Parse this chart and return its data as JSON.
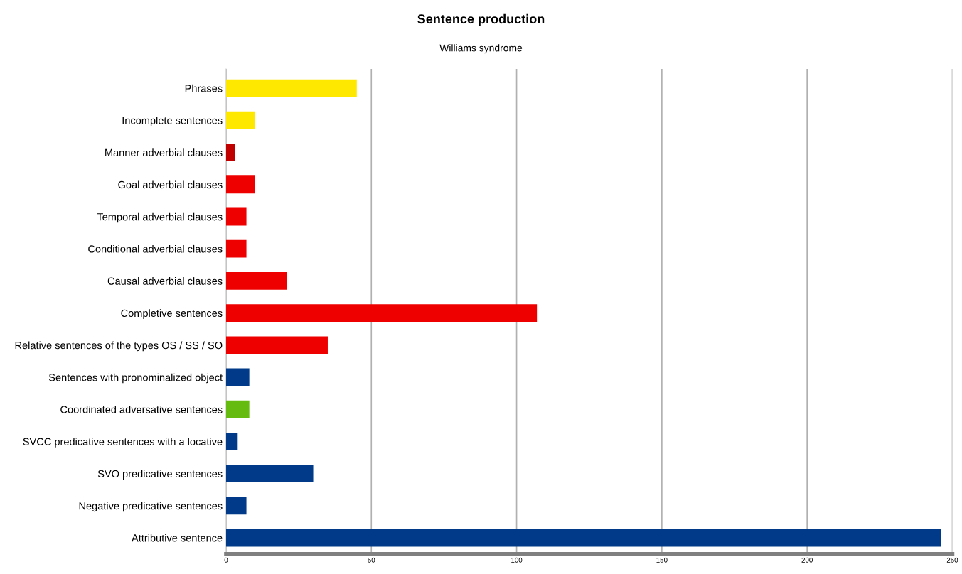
{
  "chart_data": {
    "type": "bar",
    "orientation": "horizontal",
    "title": "Sentence production",
    "subtitle": "Williams syndrome",
    "categories": [
      "Phrases",
      "Incomplete sentences",
      "Manner adverbial clauses",
      "Goal adverbial clauses",
      "Temporal adverbial clauses",
      "Conditional adverbial clauses",
      "Causal adverbial clauses",
      "Completive sentences",
      "Relative sentences of the types OS / SS / SO",
      "Sentences with pronominalized object",
      "Coordinated adversative sentences",
      "SVCC predicative sentences with a locative",
      "SVO predicative sentences",
      "Negative predicative sentences",
      "Attributive sentence"
    ],
    "values": [
      45,
      10,
      3,
      10,
      7,
      7,
      21,
      107,
      35,
      8,
      8,
      4,
      30,
      7,
      246
    ],
    "colors": [
      "#ffe800",
      "#ffe800",
      "#c00000",
      "#ee0000",
      "#ee0000",
      "#ee0000",
      "#ee0000",
      "#ee0000",
      "#ee0000",
      "#003a88",
      "#66bb11",
      "#003a88",
      "#003a88",
      "#003a88",
      "#003a88"
    ],
    "xlim": [
      0,
      250
    ],
    "xticks": [
      0,
      50,
      100,
      150,
      200,
      250
    ],
    "grid": "x"
  }
}
